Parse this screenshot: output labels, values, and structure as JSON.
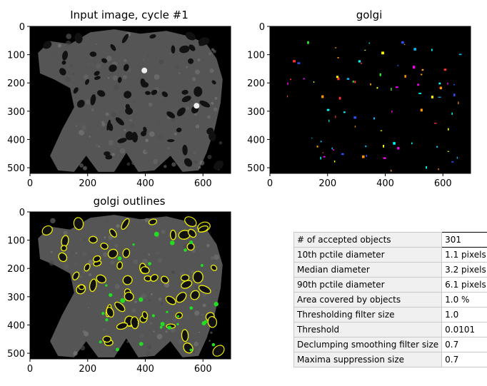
{
  "figure": {
    "panels": [
      {
        "id": "input",
        "title": "Input image, cycle #1"
      },
      {
        "id": "golgi",
        "title": "golgi"
      },
      {
        "id": "outlines",
        "title": "golgi outlines"
      }
    ]
  },
  "chart_data": [
    {
      "type": "image",
      "title": "Input image, cycle #1",
      "xticks": [
        "0",
        "200",
        "400",
        "600"
      ],
      "yticks": [
        "0",
        "100",
        "200",
        "300",
        "400",
        "500"
      ],
      "xlim": [
        0,
        696
      ],
      "ylim": [
        520,
        0
      ],
      "colormap": "gray"
    },
    {
      "type": "image",
      "title": "golgi",
      "xticks": [
        "0",
        "200",
        "400",
        "600"
      ],
      "yticks": [
        "0",
        "100",
        "200",
        "300",
        "400",
        "500"
      ],
      "xlim": [
        0,
        696
      ],
      "ylim": [
        520,
        0
      ],
      "colormap": "jet labels on black"
    },
    {
      "type": "image",
      "title": "golgi outlines",
      "xticks": [
        "0",
        "200",
        "400",
        "600"
      ],
      "yticks": [
        "0",
        "100",
        "200",
        "300",
        "400",
        "500"
      ],
      "xlim": [
        0,
        696
      ],
      "ylim": [
        520,
        0
      ],
      "colormap": "gray with yellow/green outlines"
    }
  ],
  "measurements": {
    "rows": [
      {
        "label": "# of accepted objects",
        "value": "301"
      },
      {
        "label": "10th pctile diameter",
        "value": "1.1 pixels"
      },
      {
        "label": "Median diameter",
        "value": "3.2 pixels"
      },
      {
        "label": "90th pctile diameter",
        "value": "6.1 pixels"
      },
      {
        "label": "Area covered by objects",
        "value": "1.0 %"
      },
      {
        "label": "Thresholding filter size",
        "value": "1.0"
      },
      {
        "label": "Threshold",
        "value": "0.0101"
      },
      {
        "label": "Declumping smoothing filter size",
        "value": "0.7"
      },
      {
        "label": "Maxima suppression size",
        "value": "0.7"
      }
    ]
  }
}
